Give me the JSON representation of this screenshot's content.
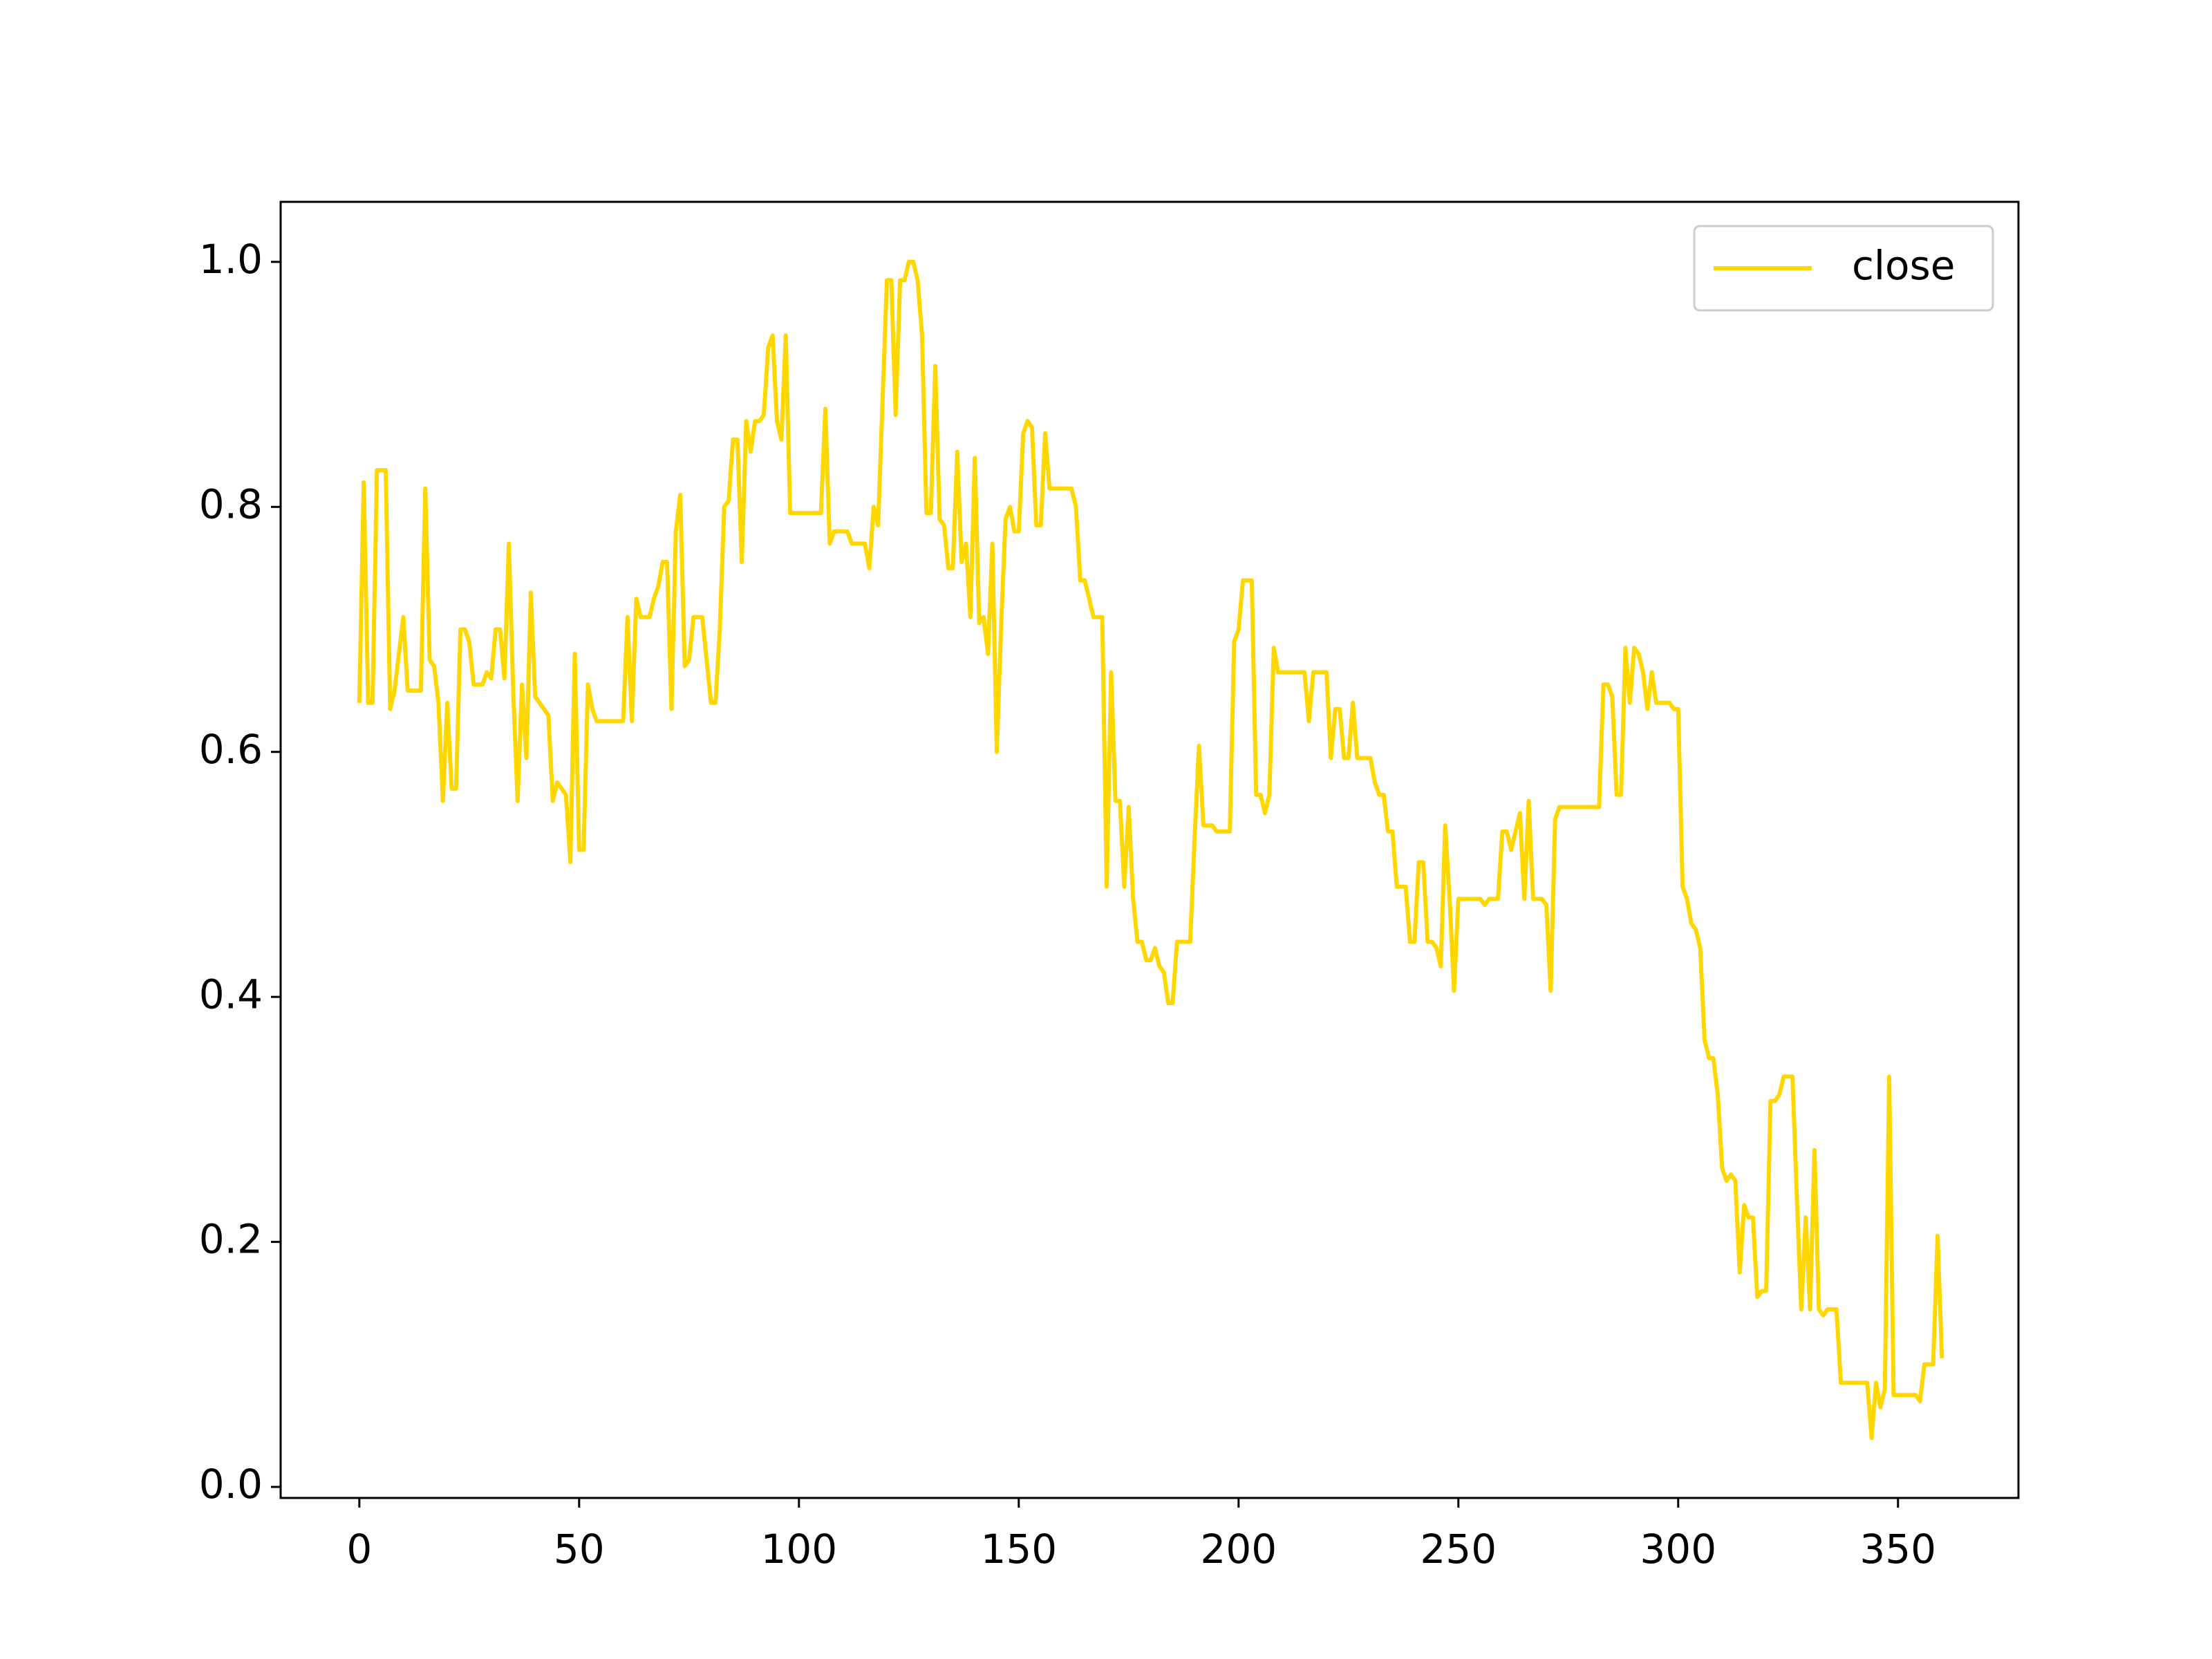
{
  "chart_data": {
    "type": "line",
    "x": [
      0,
      1,
      2,
      3,
      4,
      6,
      7,
      8,
      10,
      11,
      14,
      15,
      16,
      17,
      18,
      19,
      20,
      21,
      22,
      23,
      24,
      25,
      26,
      28,
      29,
      30,
      31,
      32,
      33,
      34,
      35,
      36,
      37,
      38,
      39,
      40,
      41,
      42,
      43,
      44,
      45,
      46,
      47,
      48,
      49,
      50,
      51,
      52,
      53,
      54,
      60,
      61,
      62,
      63,
      64,
      66,
      67,
      68,
      69,
      70,
      71,
      72,
      73,
      74,
      75,
      76,
      78,
      80,
      81,
      82,
      83,
      84,
      85,
      86,
      87,
      88,
      89,
      90,
      91,
      92,
      93,
      94,
      95,
      96,
      97,
      98,
      99,
      105,
      106,
      107,
      108,
      111,
      112,
      115,
      116,
      117,
      118,
      120,
      121,
      122,
      123,
      124,
      125,
      126,
      127,
      128,
      129,
      130,
      131,
      132,
      133,
      134,
      135,
      136,
      137,
      138,
      139,
      140,
      141,
      142,
      143,
      144,
      145,
      146,
      147,
      148,
      149,
      150,
      151,
      152,
      153,
      154,
      155,
      156,
      157,
      162,
      163,
      164,
      165,
      166,
      167,
      169,
      170,
      171,
      172,
      173,
      174,
      175,
      176,
      177,
      178,
      179,
      180,
      181,
      182,
      183,
      184,
      185,
      186,
      189,
      190,
      191,
      192,
      194,
      195,
      198,
      199,
      200,
      201,
      203,
      204,
      205,
      206,
      207,
      208,
      209,
      215,
      216,
      217,
      220,
      221,
      222,
      223,
      224,
      225,
      226,
      227,
      230,
      231,
      232,
      233,
      234,
      235,
      236,
      238,
      239,
      240,
      241,
      242,
      243,
      244,
      245,
      246,
      247,
      248,
      249,
      250,
      255,
      256,
      257,
      259,
      260,
      261,
      262,
      263,
      264,
      265,
      266,
      267,
      269,
      270,
      271,
      272,
      273,
      282,
      283,
      284,
      285,
      286,
      287,
      288,
      289,
      290,
      291,
      292,
      293,
      294,
      295,
      298,
      299,
      300,
      301,
      302,
      303,
      304,
      305,
      306,
      307,
      308,
      309,
      310,
      311,
      312,
      313,
      314,
      315,
      316,
      317,
      318,
      319,
      320,
      321,
      322,
      323,
      324,
      326,
      327,
      328,
      329,
      330,
      331,
      332,
      333,
      334,
      336,
      337,
      343,
      344,
      345,
      346,
      347,
      348,
      349,
      354,
      355,
      356,
      358,
      359,
      360
    ],
    "series": [
      {
        "name": "close",
        "color": "#ffd700",
        "values": [
          0.64,
          0.82,
          0.64,
          0.64,
          0.83,
          0.83,
          0.635,
          0.65,
          0.71,
          0.65,
          0.65,
          0.815,
          0.675,
          0.67,
          0.64,
          0.56,
          0.64,
          0.57,
          0.57,
          0.7,
          0.7,
          0.69,
          0.655,
          0.655,
          0.665,
          0.66,
          0.7,
          0.7,
          0.66,
          0.77,
          0.65,
          0.56,
          0.655,
          0.595,
          0.73,
          0.645,
          0.64,
          0.635,
          0.63,
          0.56,
          0.575,
          0.57,
          0.565,
          0.51,
          0.68,
          0.52,
          0.52,
          0.655,
          0.635,
          0.625,
          0.625,
          0.71,
          0.625,
          0.725,
          0.71,
          0.71,
          0.725,
          0.735,
          0.755,
          0.755,
          0.635,
          0.78,
          0.81,
          0.67,
          0.675,
          0.71,
          0.71,
          0.64,
          0.64,
          0.7,
          0.8,
          0.805,
          0.855,
          0.855,
          0.755,
          0.87,
          0.845,
          0.87,
          0.87,
          0.875,
          0.93,
          0.94,
          0.87,
          0.855,
          0.94,
          0.795,
          0.795,
          0.795,
          0.88,
          0.77,
          0.78,
          0.78,
          0.77,
          0.77,
          0.75,
          0.8,
          0.785,
          0.985,
          0.985,
          0.875,
          0.985,
          0.985,
          1.0,
          1.0,
          0.985,
          0.94,
          0.795,
          0.795,
          0.915,
          0.79,
          0.785,
          0.75,
          0.75,
          0.845,
          0.755,
          0.77,
          0.71,
          0.84,
          0.705,
          0.71,
          0.68,
          0.77,
          0.6,
          0.705,
          0.79,
          0.8,
          0.78,
          0.78,
          0.86,
          0.87,
          0.865,
          0.785,
          0.785,
          0.86,
          0.815,
          0.815,
          0.8,
          0.74,
          0.74,
          0.725,
          0.71,
          0.71,
          0.49,
          0.665,
          0.56,
          0.56,
          0.49,
          0.555,
          0.48,
          0.445,
          0.445,
          0.43,
          0.43,
          0.44,
          0.425,
          0.42,
          0.395,
          0.395,
          0.445,
          0.445,
          0.53,
          0.605,
          0.54,
          0.54,
          0.535,
          0.535,
          0.69,
          0.7,
          0.74,
          0.74,
          0.565,
          0.565,
          0.55,
          0.565,
          0.685,
          0.665,
          0.665,
          0.625,
          0.665,
          0.665,
          0.595,
          0.635,
          0.635,
          0.595,
          0.595,
          0.64,
          0.595,
          0.595,
          0.575,
          0.565,
          0.565,
          0.535,
          0.535,
          0.49,
          0.49,
          0.445,
          0.445,
          0.51,
          0.51,
          0.445,
          0.445,
          0.44,
          0.425,
          0.54,
          0.48,
          0.405,
          0.48,
          0.48,
          0.475,
          0.48,
          0.48,
          0.535,
          0.535,
          0.52,
          0.535,
          0.55,
          0.48,
          0.56,
          0.48,
          0.48,
          0.475,
          0.405,
          0.545,
          0.555,
          0.555,
          0.655,
          0.655,
          0.645,
          0.565,
          0.565,
          0.685,
          0.64,
          0.685,
          0.68,
          0.665,
          0.635,
          0.665,
          0.64,
          0.64,
          0.635,
          0.635,
          0.49,
          0.48,
          0.46,
          0.455,
          0.44,
          0.365,
          0.35,
          0.35,
          0.32,
          0.26,
          0.25,
          0.255,
          0.25,
          0.175,
          0.23,
          0.22,
          0.22,
          0.155,
          0.16,
          0.16,
          0.315,
          0.315,
          0.32,
          0.335,
          0.335,
          0.235,
          0.145,
          0.22,
          0.145,
          0.275,
          0.145,
          0.14,
          0.145,
          0.145,
          0.085,
          0.085,
          0.04,
          0.085,
          0.065,
          0.08,
          0.335,
          0.075,
          0.075,
          0.07,
          0.1,
          0.1,
          0.205,
          0.105
        ]
      }
    ],
    "xlim": [
      -17.9,
      377.4
    ],
    "ylim": [
      -0.009,
      1.049
    ],
    "xticks": [
      0,
      50,
      100,
      150,
      200,
      250,
      300,
      350
    ],
    "yticks": [
      {
        "value": 0,
        "label": "0.0"
      },
      0.2,
      0.4,
      0.6,
      0.8,
      {
        "value": 1,
        "label": "1.0"
      }
    ],
    "legend": "upper right"
  }
}
